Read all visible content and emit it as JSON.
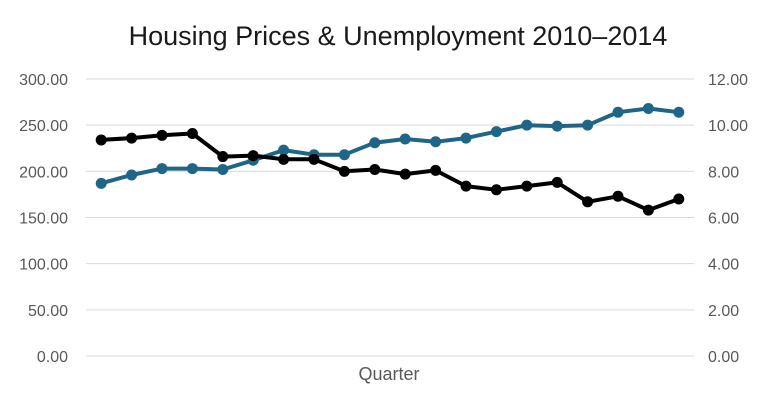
{
  "chart_data": {
    "type": "line",
    "title": "Housing Prices & Unemployment 2010–2014",
    "xlabel": "Quarter",
    "ylabel": "",
    "y2label": "",
    "grid": true,
    "legend": "none",
    "ylim": [
      0,
      300
    ],
    "y2lim": [
      0,
      12
    ],
    "y_ticks": [
      "0.00",
      "50.00",
      "100.00",
      "150.00",
      "200.00",
      "250.00",
      "300.00"
    ],
    "y2_ticks": [
      "0.00",
      "2.00",
      "4.00",
      "6.00",
      "8.00",
      "10.00",
      "12.00"
    ],
    "x_count": 20,
    "series": [
      {
        "axis": "left",
        "color": "#1f6587",
        "values": [
          187,
          196,
          203,
          203,
          202,
          212,
          223,
          218,
          218,
          231,
          235,
          232,
          236,
          243,
          250,
          249,
          250,
          264,
          268,
          264
        ]
      },
      {
        "axis": "right",
        "color": "#000000",
        "values": [
          9.36,
          9.44,
          9.56,
          9.64,
          8.64,
          8.68,
          8.52,
          8.52,
          8.0,
          8.08,
          7.88,
          8.04,
          7.36,
          7.2,
          7.36,
          7.52,
          6.68,
          6.92,
          6.32,
          6.8
        ]
      }
    ]
  }
}
